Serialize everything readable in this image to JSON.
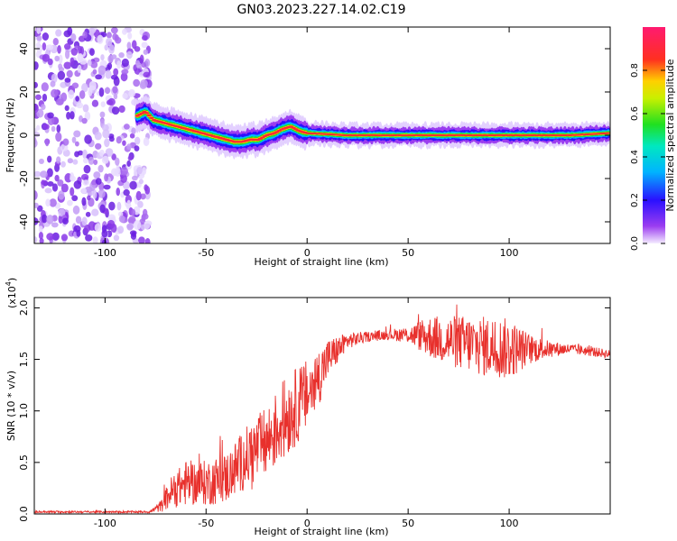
{
  "figure_title": "GN03.2023.227.14.02.C19",
  "chart_data": [
    {
      "type": "heatmap",
      "xlabel": "Height of straight line (km)",
      "ylabel": "Frequency (Hz)",
      "xlim": [
        -135,
        150
      ],
      "ylim": [
        -50,
        50
      ],
      "x_ticks": [
        -100,
        -50,
        0,
        50,
        100
      ],
      "y_ticks": [
        -40,
        -20,
        0,
        20,
        40
      ],
      "colorbar": {
        "label": "Normalized spectral amplitude",
        "range": [
          0,
          1
        ],
        "ticks": [
          "0.0",
          "0.2",
          "0.4",
          "0.6",
          "0.8"
        ],
        "colormap": "rainbow (white-violet-blue-cyan-green-yellow-red-pink)"
      },
      "noise_region_x": [
        -135,
        -78
      ],
      "frequency_ridge": {
        "x": [
          -84,
          -80,
          -76,
          -72,
          -68,
          -64,
          -60,
          -56,
          -52,
          -48,
          -44,
          -40,
          -36,
          -32,
          -28,
          -24,
          -20,
          -16,
          -12,
          -8,
          -4,
          0,
          10,
          20,
          30,
          40,
          50,
          60,
          70,
          80,
          90,
          100,
          110,
          120,
          130,
          140,
          150
        ],
        "y": [
          9,
          11,
          7,
          6,
          5,
          4,
          3,
          2,
          1,
          0,
          -1,
          -2,
          -3,
          -3,
          -2,
          -2,
          0,
          1,
          3,
          4,
          2,
          1,
          0.5,
          0,
          0,
          0,
          0,
          0,
          0,
          0,
          0,
          0,
          0,
          0,
          0,
          0.5,
          1
        ]
      }
    },
    {
      "type": "line",
      "xlabel": "Height of straight line (km)",
      "ylabel": "SNR (10 * v/v)",
      "scale_note": "(x10",
      "scale_exp": "4",
      "xlim": [
        -135,
        150
      ],
      "ylim": [
        0,
        2.1
      ],
      "x_ticks": [
        -100,
        -50,
        0,
        50,
        100
      ],
      "y_ticks": [
        "0.0",
        "0.5",
        "1.0",
        "1.5",
        "2.0"
      ],
      "series_color": "#e8302c",
      "envelope": {
        "x": [
          -135,
          -110,
          -78,
          -72,
          -68,
          -60,
          -50,
          -40,
          -30,
          -20,
          -10,
          0,
          5,
          10,
          20,
          30,
          40,
          50,
          60,
          70,
          80,
          90,
          100,
          110,
          120,
          130,
          140,
          150
        ],
        "mean": [
          0.02,
          0.02,
          0.02,
          0.08,
          0.2,
          0.3,
          0.3,
          0.35,
          0.55,
          0.7,
          0.95,
          1.15,
          1.3,
          1.5,
          1.68,
          1.72,
          1.74,
          1.74,
          1.72,
          1.68,
          1.65,
          1.62,
          1.6,
          1.6,
          1.6,
          1.6,
          1.58,
          1.55
        ],
        "spread": [
          0.01,
          0.01,
          0.01,
          0.06,
          0.15,
          0.22,
          0.22,
          0.25,
          0.3,
          0.35,
          0.4,
          0.35,
          0.3,
          0.2,
          0.08,
          0.05,
          0.05,
          0.08,
          0.2,
          0.25,
          0.28,
          0.3,
          0.3,
          0.15,
          0.08,
          0.05,
          0.05,
          0.04
        ]
      }
    }
  ]
}
